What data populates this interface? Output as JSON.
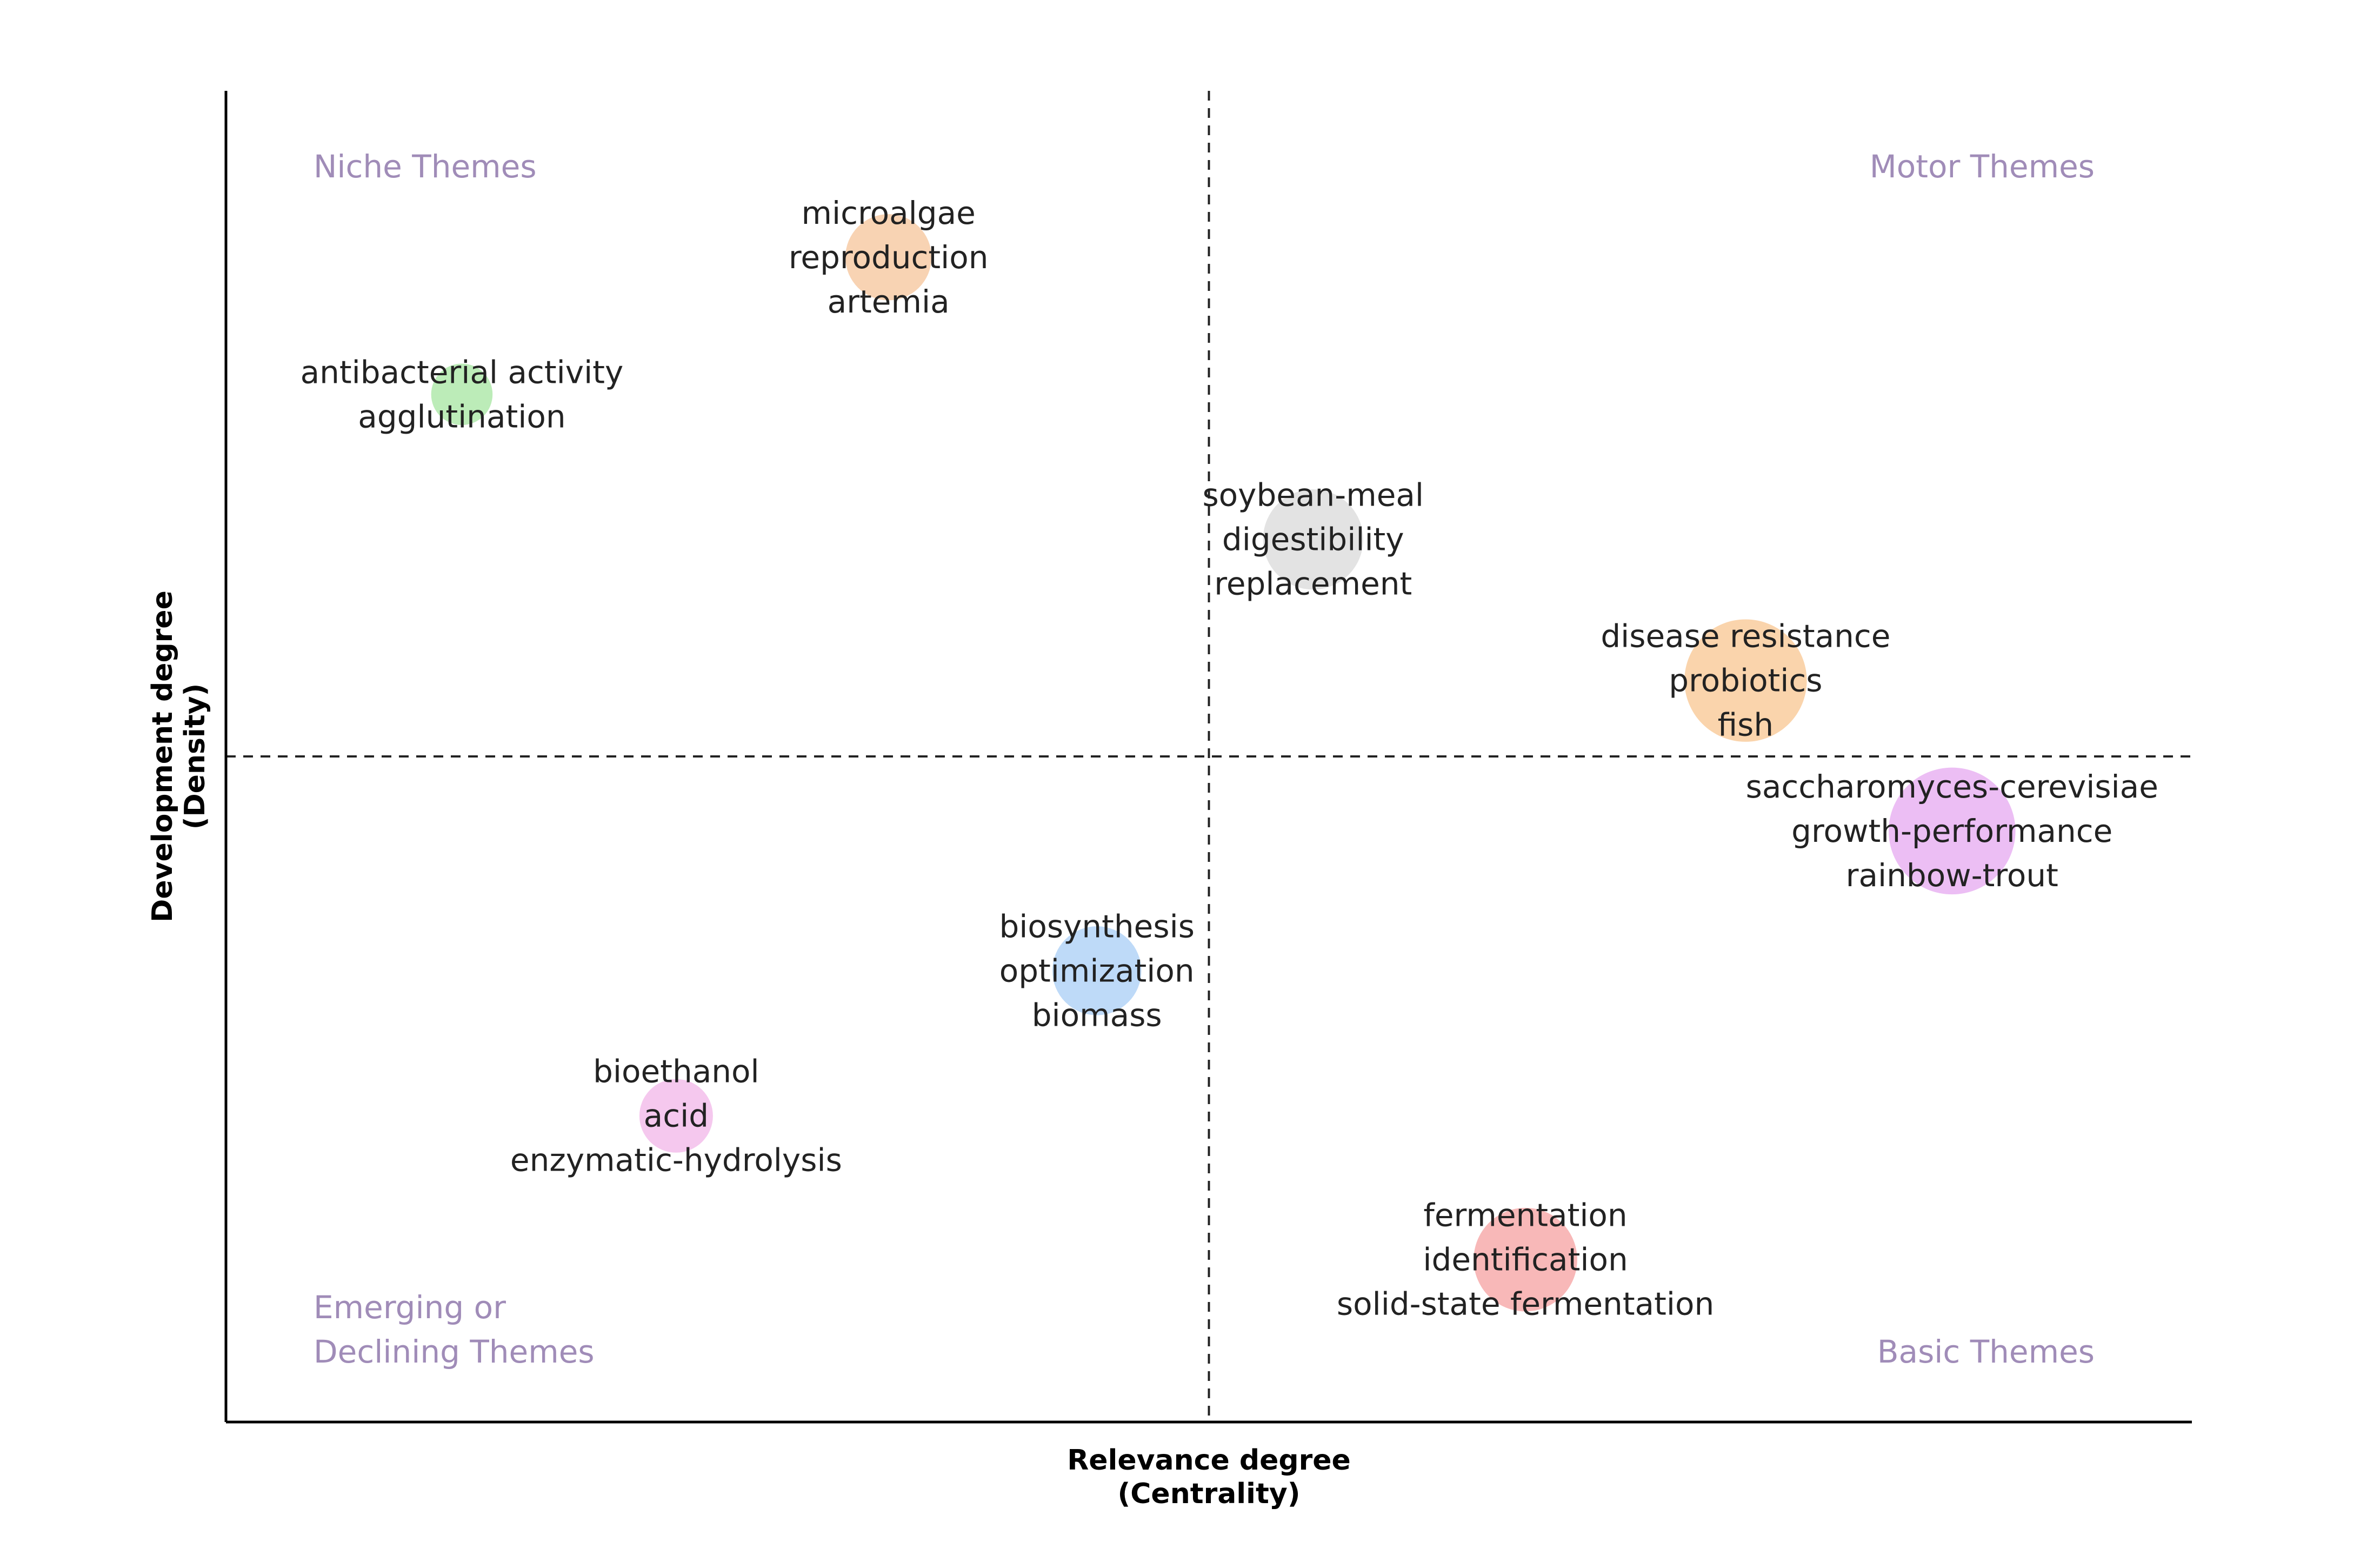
{
  "chart_data": {
    "type": "scatter",
    "title": "",
    "xlabel_lines": [
      "Relevance degree",
      "(Centrality)"
    ],
    "ylabel_lines": [
      "Development degree",
      "(Density)"
    ],
    "xlim": [
      0,
      1
    ],
    "ylim": [
      0,
      1
    ],
    "reference_lines": {
      "x": 0.5,
      "y": 0.5
    },
    "grid": false,
    "quadrant_labels": [
      {
        "quadrant": "top-left",
        "lines": [
          "Niche Themes"
        ]
      },
      {
        "quadrant": "top-right",
        "lines": [
          "Motor Themes"
        ]
      },
      {
        "quadrant": "bottom-left",
        "lines": [
          "Emerging or",
          "Declining Themes"
        ]
      },
      {
        "quadrant": "bottom-right",
        "lines": [
          "Basic Themes"
        ]
      }
    ],
    "clusters": [
      {
        "name": "microalgae",
        "x": 0.337,
        "y": 0.875,
        "size": 0.22,
        "color": "#f5c49a",
        "labels": [
          "microalgae",
          "reproduction",
          "artemia"
        ]
      },
      {
        "name": "antibacterial activity",
        "x": 0.12,
        "y": 0.772,
        "size": 0.08,
        "color": "#a6e6a0",
        "labels": [
          "antibacterial activity",
          "agglutination"
        ]
      },
      {
        "name": "soybean-meal",
        "x": 0.553,
        "y": 0.663,
        "size": 0.33,
        "color": "#d9d9d9",
        "labels": [
          "soybean-meal",
          "digestibility",
          "replacement"
        ]
      },
      {
        "name": "disease resistance",
        "x": 0.773,
        "y": 0.557,
        "size": 0.55,
        "color": "#f8c690",
        "labels": [
          "disease resistance",
          "probiotics",
          "fish"
        ]
      },
      {
        "name": "saccharomyces-cerevisiae",
        "x": 0.878,
        "y": 0.444,
        "size": 0.6,
        "color": "#e6a8f0",
        "labels": [
          "saccharomyces-cerevisiae",
          "growth-performance",
          "rainbow-trout"
        ]
      },
      {
        "name": "biosynthesis",
        "x": 0.443,
        "y": 0.339,
        "size": 0.24,
        "color": "#a8cdf5",
        "labels": [
          "biosynthesis",
          "optimization",
          "biomass"
        ]
      },
      {
        "name": "bioethanol",
        "x": 0.229,
        "y": 0.23,
        "size": 0.14,
        "color": "#f2b6e8",
        "labels": [
          "bioethanol",
          "acid",
          "enzymatic-hydrolysis"
        ]
      },
      {
        "name": "fermentation",
        "x": 0.661,
        "y": 0.122,
        "size": 0.36,
        "color": "#f5a0a0",
        "labels": [
          "fermentation",
          "identification",
          "solid-state fermentation"
        ]
      }
    ]
  }
}
